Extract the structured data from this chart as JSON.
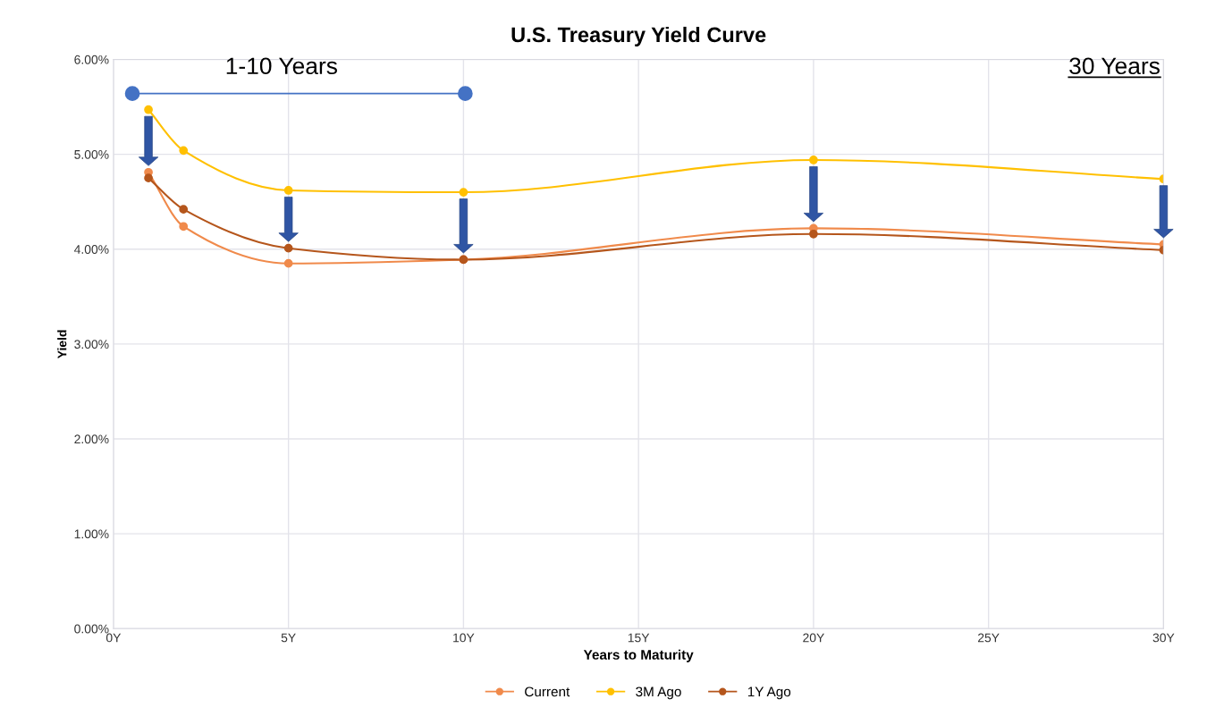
{
  "chart_data": {
    "type": "line",
    "title": "U.S. Treasury Yield Curve",
    "xlabel": "Years to Maturity",
    "ylabel": "Yield",
    "x": [
      1,
      2,
      5,
      10,
      20,
      30
    ],
    "series": [
      {
        "name": "Current",
        "color": "#f08a4b",
        "values": [
          4.81,
          4.24,
          3.85,
          3.89,
          4.22,
          4.05
        ]
      },
      {
        "name": "3M Ago",
        "color": "#ffc000",
        "values": [
          5.47,
          5.04,
          4.62,
          4.6,
          4.94,
          4.74
        ]
      },
      {
        "name": "1Y Ago",
        "color": "#b5561c",
        "values": [
          4.75,
          4.42,
          4.01,
          3.89,
          4.16,
          3.99
        ]
      }
    ],
    "xlim": [
      0,
      30
    ],
    "ylim": [
      0,
      6
    ],
    "xticks": [
      {
        "value": 0,
        "label": "0Y"
      },
      {
        "value": 5,
        "label": "5Y"
      },
      {
        "value": 10,
        "label": "10Y"
      },
      {
        "value": 15,
        "label": "15Y"
      },
      {
        "value": 20,
        "label": "20Y"
      },
      {
        "value": 25,
        "label": "25Y"
      },
      {
        "value": 30,
        "label": "30Y"
      }
    ],
    "yticks": [
      {
        "value": 0,
        "label": "0.00%"
      },
      {
        "value": 1,
        "label": "1.00%"
      },
      {
        "value": 2,
        "label": "2.00%"
      },
      {
        "value": 3,
        "label": "3.00%"
      },
      {
        "value": 4,
        "label": "4.00%"
      },
      {
        "value": 5,
        "label": "5.00%"
      },
      {
        "value": 6,
        "label": "6.00%"
      }
    ],
    "annotations": [
      "1-10 Years",
      "30 Years"
    ],
    "grid": true,
    "legend": "bottom",
    "marker": "circle",
    "line_style": "solid"
  }
}
